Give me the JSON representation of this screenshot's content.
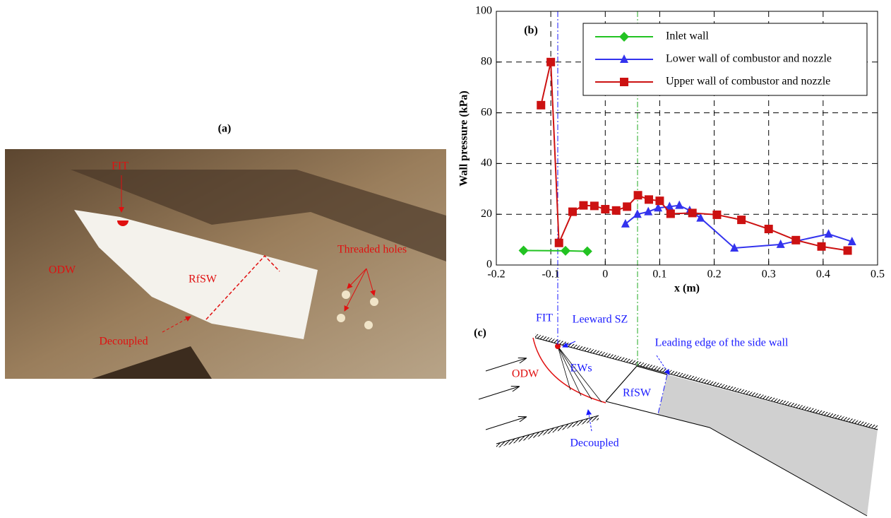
{
  "photo": {
    "label": "(a)",
    "annotations": [
      "FIT",
      "ODW",
      "RfSW",
      "Threaded holes",
      "Decoupled"
    ]
  },
  "chart_data": {
    "type": "line",
    "panel_label": "(b)",
    "xlabel": "x (m)",
    "ylabel": "Wall pressure (kPa)",
    "xlim": [
      -0.2,
      0.5
    ],
    "xticks": [
      -0.2,
      -0.1,
      0,
      0.1,
      0.2,
      0.3,
      0.4,
      0.5
    ],
    "ylim": [
      0,
      100
    ],
    "yticks": [
      0,
      20,
      40,
      60,
      80,
      100
    ],
    "grid": true,
    "legend": "upper right",
    "series": [
      {
        "name": "Inlet wall",
        "color": "#22c322",
        "marker": "diamond",
        "x": [
          -0.15,
          -0.073,
          -0.033
        ],
        "values": [
          5.7,
          5.6,
          5.4
        ]
      },
      {
        "name": "Lower wall of combustor and nozzle",
        "color": "#3333ee",
        "marker": "triangle",
        "x": [
          0.037,
          0.059,
          0.079,
          0.097,
          0.118,
          0.136,
          0.155,
          0.175,
          0.237,
          0.322,
          0.41,
          0.453
        ],
        "values": [
          16.2,
          20,
          21,
          22.5,
          23,
          23.5,
          21.5,
          18.5,
          6.7,
          8.1,
          12.2,
          9.2
        ]
      },
      {
        "name": "Upper wall of combustor and nozzle",
        "color": "#cc1111",
        "marker": "square",
        "x": [
          -0.118,
          -0.1,
          -0.085,
          -0.06,
          -0.04,
          -0.02,
          0,
          0.02,
          0.04,
          0.06,
          0.08,
          0.1,
          0.12,
          0.16,
          0.205,
          0.25,
          0.3,
          0.35,
          0.397,
          0.445
        ],
        "values": [
          63,
          80,
          8.7,
          21,
          23.5,
          23.3,
          22,
          21.5,
          23,
          27.5,
          25.8,
          25.3,
          20.2,
          20.5,
          19.8,
          17.8,
          14.2,
          9.8,
          7.3,
          5.7
        ]
      }
    ]
  },
  "diagram": {
    "label": "(c)",
    "annotations": [
      "FIT",
      "Leeward SZ",
      "Leading edge of the side wall",
      "ODW",
      "EWs",
      "RfSW",
      "Decoupled"
    ]
  }
}
